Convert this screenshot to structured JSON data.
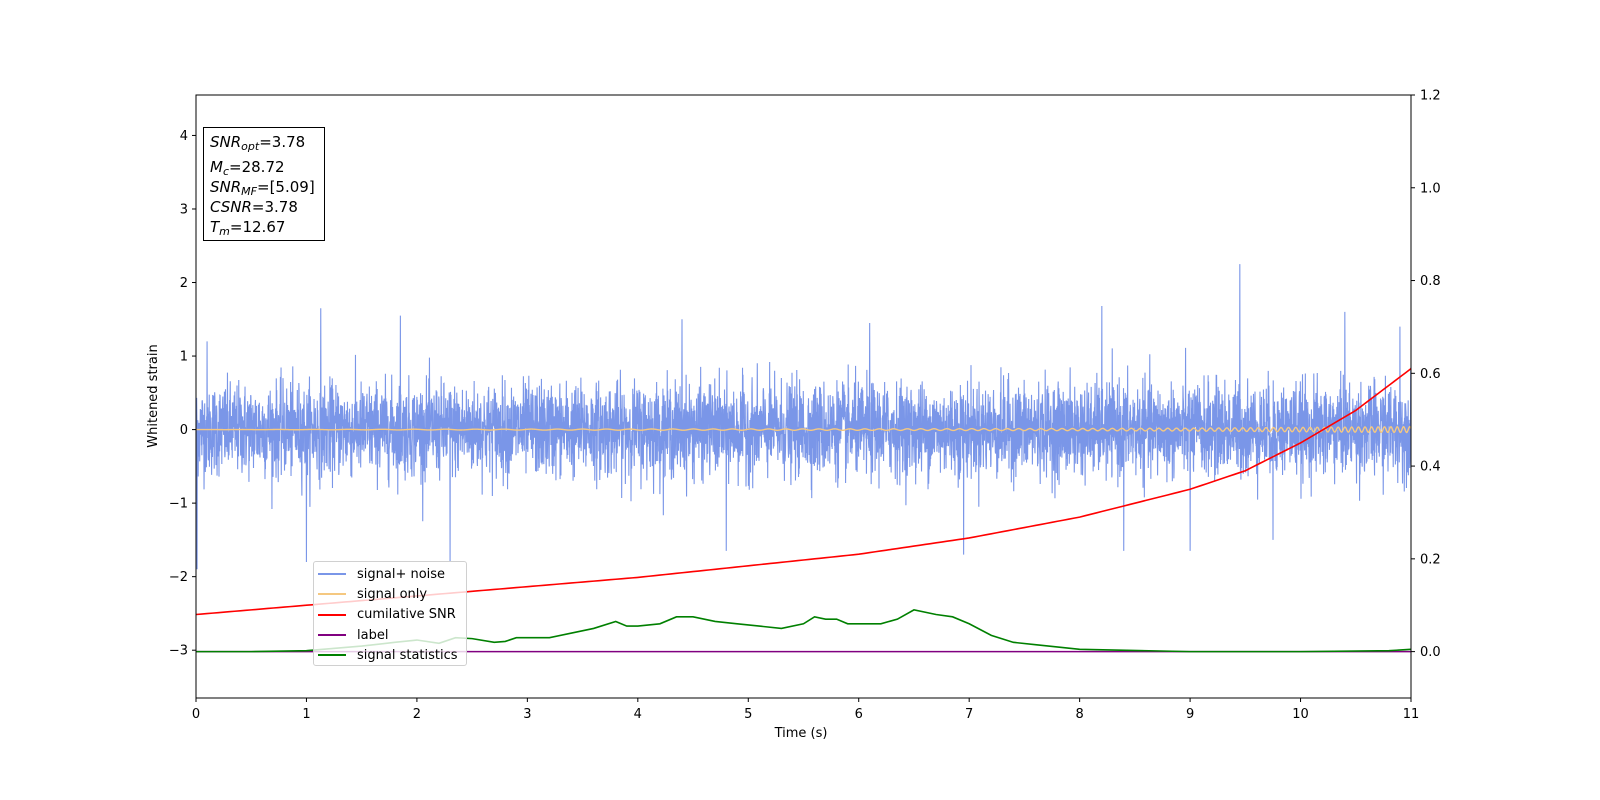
{
  "chart_data": {
    "type": "line",
    "xlabel": "Time (s)",
    "ylabel": "Whitened strain",
    "xlim": [
      0,
      11
    ],
    "ylim": [
      -3.65,
      4.55
    ],
    "y2lim": [
      -0.1,
      1.2
    ],
    "x_ticks": [
      "0",
      "1",
      "2",
      "3",
      "4",
      "5",
      "6",
      "7",
      "8",
      "9",
      "10",
      "11"
    ],
    "y_ticks": [
      "−3",
      "−2",
      "−1",
      "0",
      "1",
      "2",
      "3",
      "4"
    ],
    "y2_ticks": [
      "0.0",
      "0.2",
      "0.4",
      "0.6",
      "0.8",
      "1.0",
      "1.2"
    ],
    "grid": false,
    "legend_position": "lower-left",
    "annotation": {
      "snr_opt": {
        "symbol": "SNR",
        "sub": "opt",
        "value": "=3.78"
      },
      "mc": {
        "symbol": "M",
        "sub": "c",
        "value": "=28.72"
      },
      "snr_mf": {
        "symbol": "SNR",
        "sub": "MF",
        "value": "=[5.09]"
      },
      "csnr": {
        "symbol": "CSNR",
        "sub": "",
        "value": "=3.78"
      },
      "tm": {
        "symbol": "T",
        "sub": "m",
        "value": "=12.67"
      }
    },
    "series": [
      {
        "name": "signal+ noise",
        "color": "#7a96e8",
        "axis": "left",
        "description_kind": "noise",
        "amplitude_sigma": 0.5,
        "peaks": [
          [
            0.1,
            1.2
          ],
          [
            1.13,
            1.65
          ],
          [
            1.85,
            1.55
          ],
          [
            4.4,
            1.5
          ],
          [
            6.1,
            1.45
          ],
          [
            8.2,
            1.68
          ],
          [
            9.45,
            2.25
          ],
          [
            10.4,
            1.6
          ],
          [
            10.9,
            1.4
          ]
        ],
        "troughs": [
          [
            0.01,
            -1.9
          ],
          [
            1.0,
            -1.8
          ],
          [
            2.3,
            -1.8
          ],
          [
            4.8,
            -1.65
          ],
          [
            6.95,
            -1.7
          ],
          [
            8.4,
            -1.65
          ],
          [
            9.0,
            -1.65
          ],
          [
            9.75,
            -1.5
          ]
        ]
      },
      {
        "name": "signal only",
        "color": "#f5c880",
        "axis": "left",
        "x": [
          0,
          2,
          4,
          6,
          8,
          9,
          10,
          10.5,
          11
        ],
        "amplitude": [
          0.0,
          0.005,
          0.008,
          0.01,
          0.015,
          0.02,
          0.03,
          0.035,
          0.04
        ]
      },
      {
        "name": "cumilative SNR",
        "color": "#ff0000",
        "axis": "right",
        "x": [
          0,
          1,
          2,
          3,
          4,
          5,
          6,
          7,
          8,
          9,
          9.5,
          10,
          10.5,
          11
        ],
        "y": [
          0.08,
          0.1,
          0.12,
          0.14,
          0.16,
          0.185,
          0.21,
          0.245,
          0.29,
          0.35,
          0.39,
          0.45,
          0.52,
          0.61
        ]
      },
      {
        "name": "label",
        "color": "#800080",
        "axis": "right",
        "x": [
          0,
          11
        ],
        "y": [
          0.0,
          0.0
        ]
      },
      {
        "name": "signal statistics",
        "color": "#008000",
        "axis": "right",
        "x": [
          0,
          0.5,
          1,
          1.5,
          1.8,
          2.0,
          2.2,
          2.35,
          2.5,
          2.7,
          2.8,
          2.9,
          3.0,
          3.2,
          3.4,
          3.6,
          3.8,
          3.9,
          4.0,
          4.2,
          4.35,
          4.5,
          4.7,
          4.9,
          5.1,
          5.3,
          5.5,
          5.6,
          5.7,
          5.8,
          5.9,
          6.0,
          6.2,
          6.35,
          6.5,
          6.7,
          6.85,
          7.0,
          7.2,
          7.4,
          7.6,
          8.0,
          9.0,
          10.0,
          10.8,
          11.0
        ],
        "y": [
          0.0,
          0.0,
          0.002,
          0.012,
          0.02,
          0.025,
          0.018,
          0.03,
          0.028,
          0.02,
          0.022,
          0.03,
          0.03,
          0.03,
          0.04,
          0.05,
          0.065,
          0.055,
          0.055,
          0.06,
          0.075,
          0.075,
          0.065,
          0.06,
          0.055,
          0.05,
          0.06,
          0.075,
          0.07,
          0.07,
          0.06,
          0.06,
          0.06,
          0.07,
          0.09,
          0.08,
          0.075,
          0.06,
          0.035,
          0.02,
          0.015,
          0.005,
          0.0,
          0.0,
          0.002,
          0.005
        ]
      }
    ]
  }
}
